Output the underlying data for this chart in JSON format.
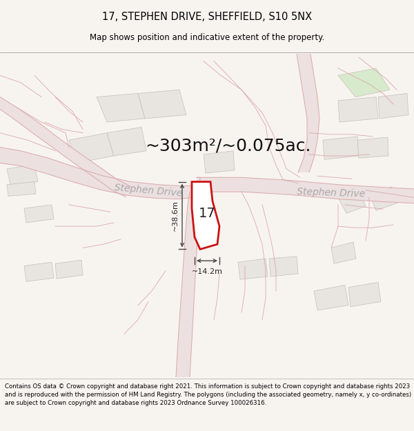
{
  "title": "17, STEPHEN DRIVE, SHEFFIELD, S10 5NX",
  "subtitle": "Map shows position and indicative extent of the property.",
  "area_text": "~303m²/~0.075ac.",
  "width_label": "~14.2m",
  "height_label": "~38.6m",
  "number_label": "17",
  "stephen_drive_label1": "Stephen Drive",
  "stephen_drive_label2": "Stephen Drive",
  "footer": "Contains OS data © Crown copyright and database right 2021. This information is subject to Crown copyright and database rights 2023 and is reproduced with the permission of HM Land Registry. The polygons (including the associated geometry, namely x, y co-ordinates) are subject to Crown copyright and database rights 2023 Ordnance Survey 100026316.",
  "bg_color": "#f7f4f0",
  "map_bg": "#f7f4f0",
  "road_fill_color": "#ece0e0",
  "road_line_color": "#dba8a8",
  "road_center_color": "#d4b8b8",
  "plot_fill": "#ffffff",
  "plot_edge": "#cc1111",
  "block_fill": "#e8e4e0",
  "block_edge": "#c8bfb8",
  "green_fill": "#d8eacc",
  "title_fontsize": 10.5,
  "subtitle_fontsize": 8.5,
  "footer_fontsize": 6.2,
  "area_fontsize": 18,
  "label_fontsize": 14,
  "road_label_fontsize": 10
}
